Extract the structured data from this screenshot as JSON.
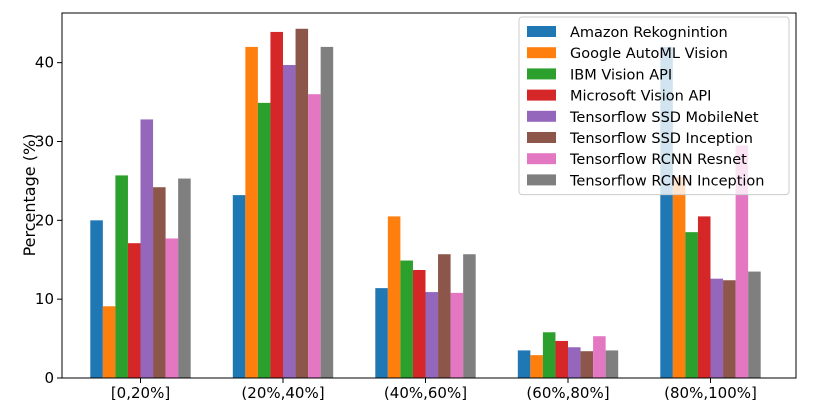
{
  "chart_data": {
    "type": "bar",
    "title": "",
    "xlabel": "",
    "ylabel": "Percentage (%)",
    "ylim": [
      0,
      46.3
    ],
    "yticks": [
      0,
      10,
      20,
      30,
      40
    ],
    "grid": false,
    "legend_position": "top-right",
    "categories": [
      "[0,20%]",
      "(20%,40%]",
      "(40%,60%]",
      "(60%,80%]",
      "(80%,100%]"
    ],
    "series": [
      {
        "name": "Amazon Rekognintion",
        "color": "#1f77b4",
        "values": [
          20.0,
          23.2,
          11.4,
          3.5,
          42.0
        ]
      },
      {
        "name": "Google AutoML Vision",
        "color": "#ff7f0e",
        "values": [
          9.1,
          42.0,
          20.5,
          2.9,
          25.5
        ]
      },
      {
        "name": "IBM Vision API",
        "color": "#2ca02c",
        "values": [
          25.7,
          34.9,
          14.9,
          5.8,
          18.5
        ]
      },
      {
        "name": "Microsoft Vision API",
        "color": "#d62728",
        "values": [
          17.1,
          43.9,
          13.7,
          4.7,
          20.5
        ]
      },
      {
        "name": "Tensorflow SSD MobileNet",
        "color": "#9467bd",
        "values": [
          32.8,
          39.7,
          10.9,
          3.9,
          12.6
        ]
      },
      {
        "name": "Tensorflow SSD Inception",
        "color": "#8c564b",
        "values": [
          24.2,
          44.3,
          15.7,
          3.4,
          12.4
        ]
      },
      {
        "name": "Tensorflow RCNN Resnet",
        "color": "#e377c2",
        "values": [
          17.7,
          36.0,
          10.8,
          5.3,
          29.5
        ]
      },
      {
        "name": "Tensorflow RCNN Inception",
        "color": "#7f7f7f",
        "values": [
          25.3,
          42.0,
          15.7,
          3.5,
          13.5
        ]
      }
    ]
  }
}
